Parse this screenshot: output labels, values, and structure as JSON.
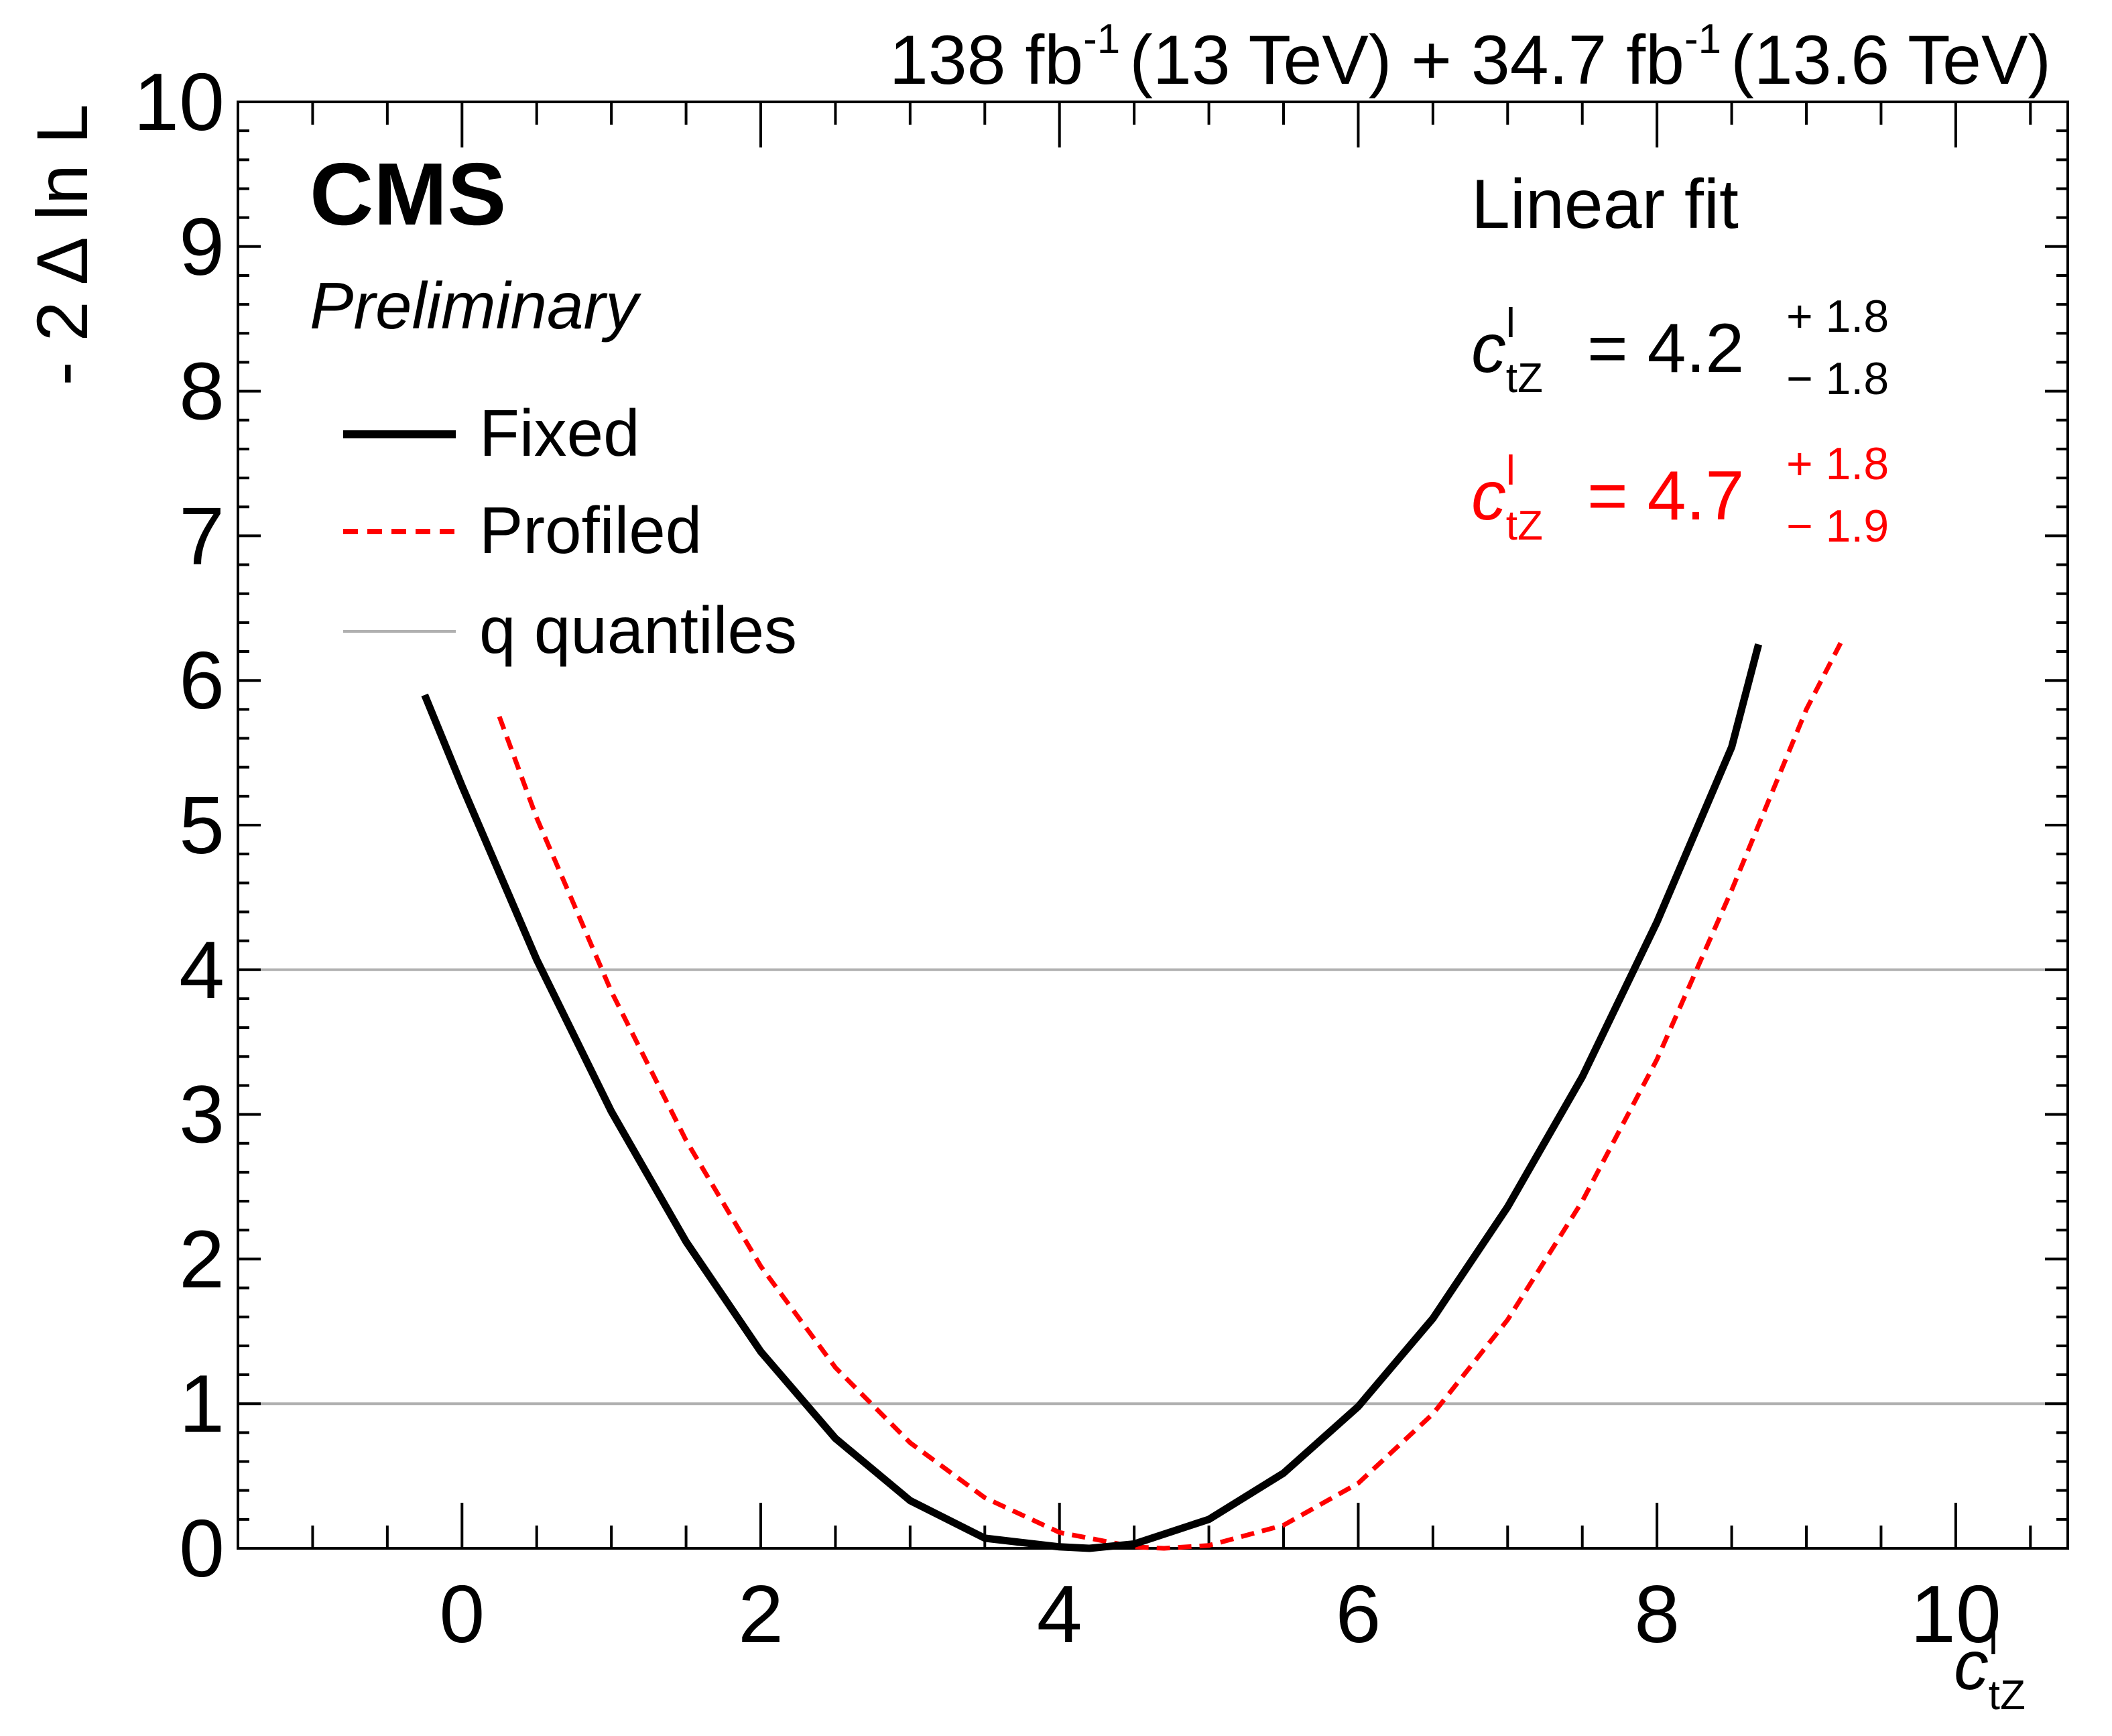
{
  "header": {
    "lumi_1": "138 fb",
    "lumi_1_exp": "-1",
    "energy_1": "(13 TeV) + 34.7 fb",
    "lumi_2_exp": "-1",
    "energy_2": "(13.6 TeV)"
  },
  "labels": {
    "experiment": "CMS",
    "status": "Preliminary",
    "fit_type": "Linear fit",
    "symbol": "c",
    "symbol_sup": "l",
    "symbol_sub": "tZ",
    "eq_fixed": "= 4.2",
    "fixed_up": "+ 1.8",
    "fixed_down": "− 1.8",
    "eq_profiled": "= 4.7",
    "profiled_up": "+ 1.8",
    "profiled_down": "− 1.9"
  },
  "chart_data": {
    "type": "line",
    "ylabel": "- 2 Δ ln L",
    "xlim": [
      -1.5,
      10.75
    ],
    "ylim": [
      0,
      10
    ],
    "x_ticks": [
      0,
      2,
      4,
      6,
      8,
      10
    ],
    "y_ticks": [
      0,
      1,
      2,
      3,
      4,
      5,
      6,
      7,
      8,
      9,
      10
    ],
    "legend_position": "top-left",
    "series": [
      {
        "name": "Fixed",
        "style": "solid",
        "color": "#000000",
        "x": [
          -0.25,
          0.0,
          0.5,
          1.0,
          1.5,
          2.0,
          2.5,
          3.0,
          3.5,
          4.0,
          4.2,
          4.5,
          5.0,
          5.5,
          6.0,
          6.5,
          7.0,
          7.5,
          8.0,
          8.5,
          8.68
        ],
        "y": [
          5.9,
          5.27,
          4.07,
          3.02,
          2.12,
          1.36,
          0.76,
          0.33,
          0.07,
          0.01,
          0.0,
          0.03,
          0.2,
          0.52,
          0.98,
          1.59,
          2.36,
          3.26,
          4.33,
          5.54,
          6.25
        ]
      },
      {
        "name": "Profiled",
        "style": "dashed",
        "color": "#ff0000",
        "x": [
          0.25,
          0.5,
          1.0,
          1.5,
          2.0,
          2.5,
          3.0,
          3.5,
          4.0,
          4.5,
          4.7,
          5.0,
          5.5,
          6.0,
          6.5,
          7.0,
          7.5,
          8.0,
          8.5,
          9.0,
          9.25
        ],
        "y": [
          5.75,
          5.05,
          3.85,
          2.82,
          1.95,
          1.25,
          0.73,
          0.35,
          0.11,
          0.01,
          0.0,
          0.02,
          0.16,
          0.45,
          0.93,
          1.58,
          2.4,
          3.38,
          4.55,
          5.8,
          6.3
        ]
      },
      {
        "name": "q quantiles",
        "style": "solid",
        "color": "#b0b0b0",
        "levels": [
          1,
          4
        ]
      }
    ]
  }
}
